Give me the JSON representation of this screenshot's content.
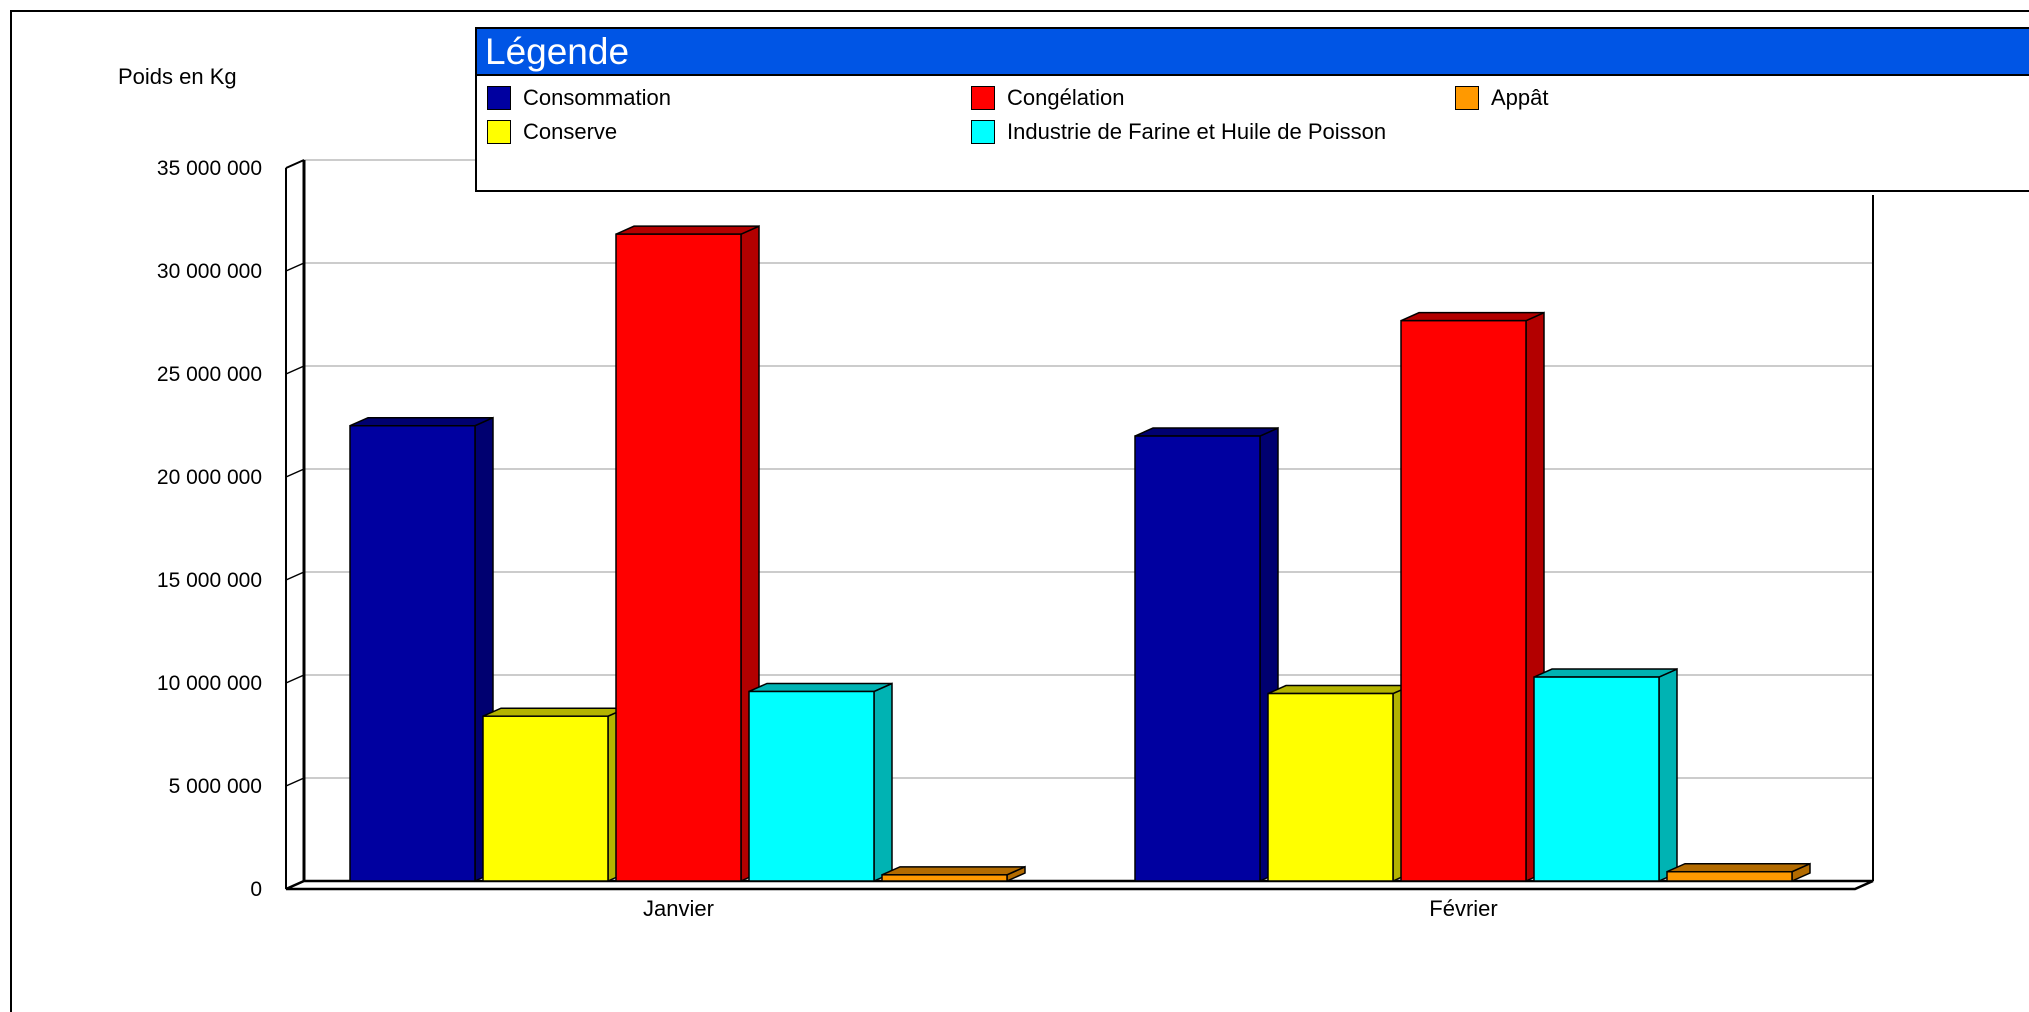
{
  "chart_data": {
    "type": "bar",
    "title": "",
    "ylabel": "Poids en Kg",
    "xlabel": "",
    "ylim": [
      0,
      35000000
    ],
    "yticks": [
      0,
      5000000,
      10000000,
      15000000,
      20000000,
      25000000,
      30000000,
      35000000
    ],
    "ytick_labels": [
      "0",
      "5 000 000",
      "10 000 000",
      "15 000 000",
      "20 000 000",
      "25 000 000",
      "30 000 000",
      "35 000 000"
    ],
    "grid": true,
    "categories": [
      "Janvier",
      "Février"
    ],
    "series": [
      {
        "name": "Consommation",
        "color": "#0000a0",
        "values": [
          22100000,
          21600000
        ]
      },
      {
        "name": "Conserve",
        "color": "#ffff00",
        "values": [
          8000000,
          9100000
        ]
      },
      {
        "name": "Congélation",
        "color": "#ff0000",
        "values": [
          31400000,
          27200000
        ]
      },
      {
        "name": "Industrie de Farine et Huile de Poisson",
        "color": "#00ffff",
        "values": [
          9200000,
          9900000
        ]
      },
      {
        "name": "Appât",
        "color": "#ff9900",
        "values": [
          300000,
          450000
        ]
      }
    ]
  },
  "legend": {
    "title": "Légende",
    "items": [
      {
        "label": "Consommation",
        "color": "#0000a0"
      },
      {
        "label": "Congélation",
        "color": "#ff0000"
      },
      {
        "label": "Appât",
        "color": "#ff9900"
      },
      {
        "label": "Conserve",
        "color": "#ffff00"
      },
      {
        "label": "Industrie de Farine et Huile de Poisson",
        "color": "#00ffff"
      }
    ]
  }
}
